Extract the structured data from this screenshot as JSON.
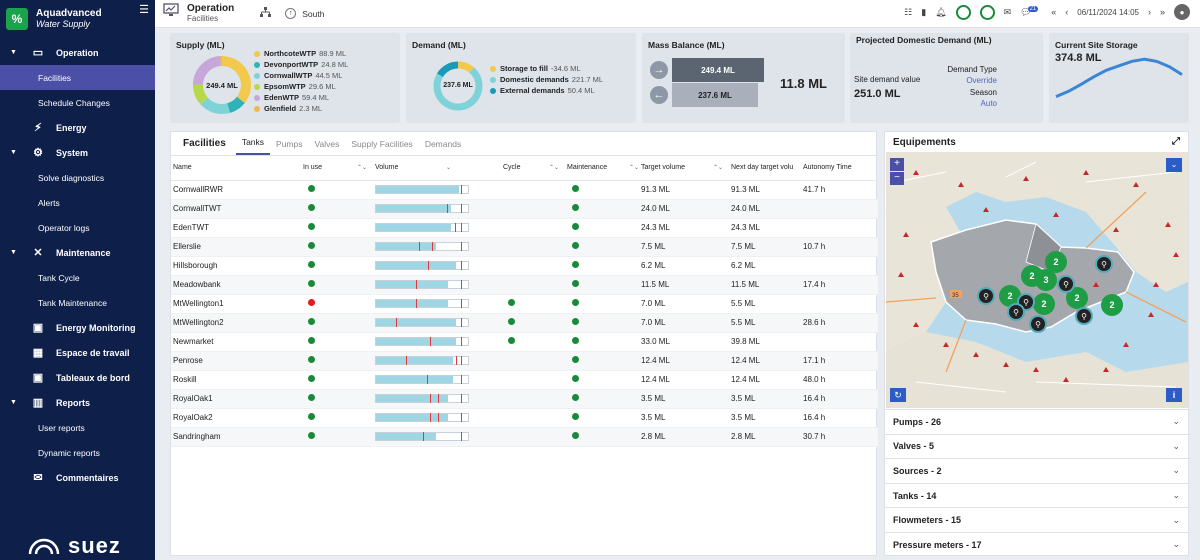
{
  "app": {
    "name": "Aquadvanced",
    "subtitle": "Water Supply",
    "logo_text": "%",
    "footer_brand": "suez"
  },
  "sidebar": {
    "items": [
      {
        "type": "group",
        "label": "Operation",
        "icon": "monitor-icon",
        "expanded": true
      },
      {
        "type": "sub",
        "label": "Facilities",
        "active": true
      },
      {
        "type": "sub",
        "label": "Schedule Changes"
      },
      {
        "type": "group",
        "label": "Energy",
        "icon": "bolt-icon",
        "expandable": false
      },
      {
        "type": "group",
        "label": "System",
        "icon": "gear-icon",
        "expanded": true
      },
      {
        "type": "sub",
        "label": "Solve diagnostics"
      },
      {
        "type": "sub",
        "label": "Alerts"
      },
      {
        "type": "sub",
        "label": "Operator logs"
      },
      {
        "type": "group",
        "label": "Maintenance",
        "icon": "tools-icon",
        "expanded": true
      },
      {
        "type": "sub",
        "label": "Tank Cycle"
      },
      {
        "type": "sub",
        "label": "Tank Maintenance"
      },
      {
        "type": "group",
        "label": "Energy Monitoring",
        "icon": "energy-monitor-icon",
        "expandable": false
      },
      {
        "type": "group",
        "label": "Espace de travail",
        "icon": "workspace-icon",
        "expandable": false
      },
      {
        "type": "group",
        "label": "Tableaux de bord",
        "icon": "dashboard-icon",
        "expandable": false
      },
      {
        "type": "group",
        "label": "Reports",
        "icon": "reports-icon",
        "expanded": true
      },
      {
        "type": "sub",
        "label": "User reports"
      },
      {
        "type": "sub",
        "label": "Dynamic reports"
      },
      {
        "type": "group",
        "label": "Commentaires",
        "icon": "comments-icon",
        "expandable": false
      }
    ]
  },
  "topbar": {
    "title": "Operation",
    "subtitle": "Facilities",
    "location": "South",
    "datetime": "06/11/2024 14:05",
    "notification_count": "21"
  },
  "supply": {
    "title": "Supply (ML)",
    "total": "249.4 ML",
    "items": [
      {
        "name": "NorthcoteWTP",
        "value": "88.9 ML",
        "num": 88.9,
        "color": "#f2c94c"
      },
      {
        "name": "DevonportWTP",
        "value": "24.8 ML",
        "num": 24.8,
        "color": "#2db3b8"
      },
      {
        "name": "CornwallWTP",
        "value": "44.5 ML",
        "num": 44.5,
        "color": "#7fd3d8"
      },
      {
        "name": "EpsomWTP",
        "value": "29.6 ML",
        "num": 29.6,
        "color": "#b6d84a"
      },
      {
        "name": "EdenWTP",
        "value": "59.4 ML",
        "num": 59.4,
        "color": "#c6a7d9"
      },
      {
        "name": "Glenfield",
        "value": "2.3 ML",
        "num": 2.3,
        "color": "#f2b84c"
      }
    ]
  },
  "demand": {
    "title": "Demand (ML)",
    "total": "237.6 ML",
    "items": [
      {
        "name": "Storage to fill",
        "value": "-34.6 ML",
        "num": 34.6,
        "color": "#f2c94c"
      },
      {
        "name": "Domestic demands",
        "value": "221.7 ML",
        "num": 221.7,
        "color": "#7fd3d8"
      },
      {
        "name": "External demands",
        "value": "50.4 ML",
        "num": 50.4,
        "color": "#1a9ab8"
      }
    ]
  },
  "mass_balance": {
    "title": "Mass Balance (ML)",
    "supply": "249.4 ML",
    "demand": "237.6 ML",
    "balance": "11.8 ML"
  },
  "projected": {
    "title": "Projected Domestic Demand (ML)",
    "site_label": "Site demand value",
    "site_value": "251.0 ML",
    "demand_type_label": "Demand Type",
    "demand_type_value": "Override",
    "season_label": "Season",
    "season_value": "Auto"
  },
  "storage": {
    "title": "Current Site Storage",
    "value": "374.8 ML",
    "trend": [
      0.1,
      0.22,
      0.38,
      0.55,
      0.7,
      0.8,
      0.9,
      0.95,
      0.9,
      0.78,
      0.6
    ]
  },
  "facilities": {
    "title": "Facilities",
    "tabs": [
      "Tanks",
      "Pumps",
      "Valves",
      "Supply Facilities",
      "Demands"
    ],
    "columns": [
      "Name",
      "In use",
      "Volume",
      "Cycle",
      "Maintenance",
      "Target volume",
      "Next day target volu",
      "Autonomy Time"
    ],
    "rows": [
      {
        "name": "CornwallRWR",
        "in_use": "green",
        "fill": 0.9,
        "marks": [
          0.92
        ],
        "cycle": "",
        "maint": "green",
        "target": "91.3 ML",
        "next": "91.3 ML",
        "auto": "41.7 h"
      },
      {
        "name": "CornwallTWT",
        "in_use": "green",
        "fill": 0.82,
        "marks": [
          0.77,
          0.92
        ],
        "cycle": "",
        "maint": "green",
        "target": "24.0 ML",
        "next": "24.0 ML",
        "auto": ""
      },
      {
        "name": "EdenTWT",
        "in_use": "green",
        "fill": 0.82,
        "marks": [
          0.86,
          0.92
        ],
        "cycle": "",
        "maint": "green",
        "target": "24.3 ML",
        "next": "24.3 ML",
        "auto": ""
      },
      {
        "name": "Ellerslie",
        "in_use": "green",
        "fill": 0.65,
        "marks": [
          0.47,
          0.61,
          0.92
        ],
        "cycle": "",
        "maint": "green",
        "target": "7.5 ML",
        "next": "7.5 ML",
        "auto": "10.7 h"
      },
      {
        "name": "Hillsborough",
        "in_use": "green",
        "fill": 0.87,
        "marks": [
          0.57,
          0.92
        ],
        "cycle": "",
        "maint": "green",
        "target": "6.2 ML",
        "next": "6.2 ML",
        "auto": ""
      },
      {
        "name": "Meadowbank",
        "in_use": "green",
        "fill": 0.78,
        "marks": [
          0.43,
          0.92
        ],
        "cycle": "",
        "maint": "green",
        "target": "11.5 ML",
        "next": "11.5 ML",
        "auto": "17.4 h"
      },
      {
        "name": "MtWellington1",
        "in_use": "red",
        "fill": 0.78,
        "marks": [
          0.43,
          0.92
        ],
        "cycle": "green",
        "maint": "green",
        "target": "7.0 ML",
        "next": "5.5 ML",
        "auto": ""
      },
      {
        "name": "MtWellington2",
        "in_use": "green",
        "fill": 0.87,
        "marks": [
          0.22,
          0.92
        ],
        "cycle": "green",
        "maint": "green",
        "target": "7.0 ML",
        "next": "5.5 ML",
        "auto": "28.6 h"
      },
      {
        "name": "Newmarket",
        "in_use": "green",
        "fill": 0.87,
        "marks": [
          0.59,
          0.92
        ],
        "cycle": "green",
        "maint": "green",
        "target": "33.0 ML",
        "next": "39.8 ML",
        "auto": ""
      },
      {
        "name": "Penrose",
        "in_use": "green",
        "fill": 0.84,
        "marks": [
          0.33,
          0.87,
          0.92
        ],
        "cycle": "",
        "maint": "green",
        "target": "12.4 ML",
        "next": "12.4 ML",
        "auto": "17.1 h"
      },
      {
        "name": "Roskill",
        "in_use": "green",
        "fill": 0.84,
        "marks": [
          0.55,
          0.92
        ],
        "cycle": "",
        "maint": "green",
        "target": "12.4 ML",
        "next": "12.4 ML",
        "auto": "48.0 h"
      },
      {
        "name": "RoyalOak1",
        "in_use": "green",
        "fill": 0.78,
        "marks": [
          0.59,
          0.67,
          0.92
        ],
        "cycle": "",
        "maint": "green",
        "target": "3.5 ML",
        "next": "3.5 ML",
        "auto": "16.4 h"
      },
      {
        "name": "RoyalOak2",
        "in_use": "green",
        "fill": 0.78,
        "marks": [
          0.59,
          0.67,
          0.92
        ],
        "cycle": "",
        "maint": "green",
        "target": "3.5 ML",
        "next": "3.5 ML",
        "auto": "16.4 h"
      },
      {
        "name": "Sandringham",
        "in_use": "green",
        "fill": 0.65,
        "marks": [
          0.51,
          0.92
        ],
        "cycle": "",
        "maint": "green",
        "target": "2.8 ML",
        "next": "2.8 ML",
        "auto": "30.7 h"
      }
    ]
  },
  "equipments": {
    "title": "Equipements",
    "map_labels": {
      "road": "35"
    },
    "clusters": [
      "2",
      "3",
      "2",
      "2",
      "2",
      "2",
      "2"
    ],
    "sections": [
      "Pumps - 26",
      "Valves - 5",
      "Sources - 2",
      "Tanks - 14",
      "Flowmeters - 15",
      "Pressure meters - 17"
    ]
  },
  "colors": {
    "sidebar": "#0e1f4a",
    "active": "#4b4fa5",
    "green": "#1a8a3a",
    "red": "#e21b1b",
    "accent_blue": "#2b5cc8"
  }
}
